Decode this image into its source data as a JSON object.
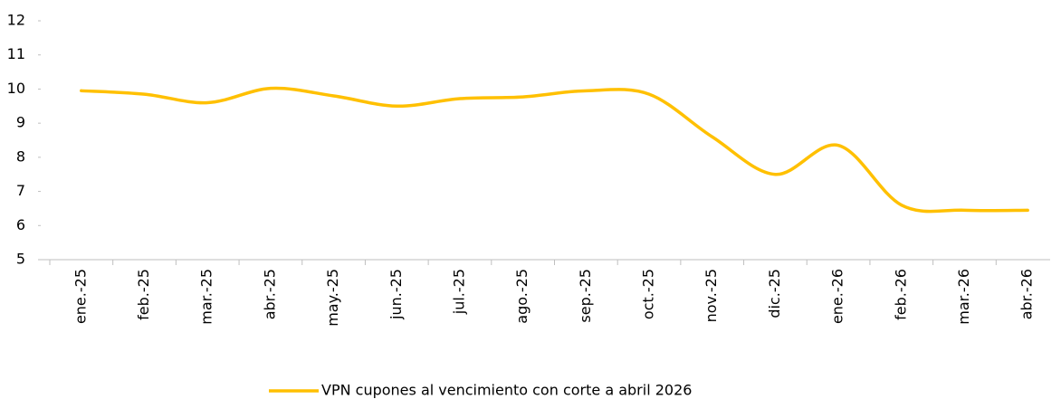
{
  "chart_data": {
    "type": "line",
    "smooth": true,
    "categories": [
      "ene.-25",
      "feb.-25",
      "mar.-25",
      "abr.-25",
      "may.-25",
      "jun.-25",
      "jul.-25",
      "ago.-25",
      "sep.-25",
      "oct.-25",
      "nov.-25",
      "dic.-25",
      "ene.-26",
      "feb.-26",
      "mar.-26",
      "abr.-26"
    ],
    "series": [
      {
        "name": "VPN cupones al vencimiento con corte a abril 2026",
        "color": "#FFC000",
        "values": [
          9.95,
          9.85,
          9.6,
          10.02,
          9.8,
          9.5,
          9.72,
          9.77,
          9.95,
          9.85,
          8.6,
          7.5,
          8.35,
          6.6,
          6.45,
          6.45
        ]
      }
    ],
    "ylim": [
      5,
      12
    ],
    "yticks": [
      5,
      6,
      7,
      8,
      9,
      10,
      11,
      12
    ],
    "grid": false,
    "legend": "bottom"
  }
}
